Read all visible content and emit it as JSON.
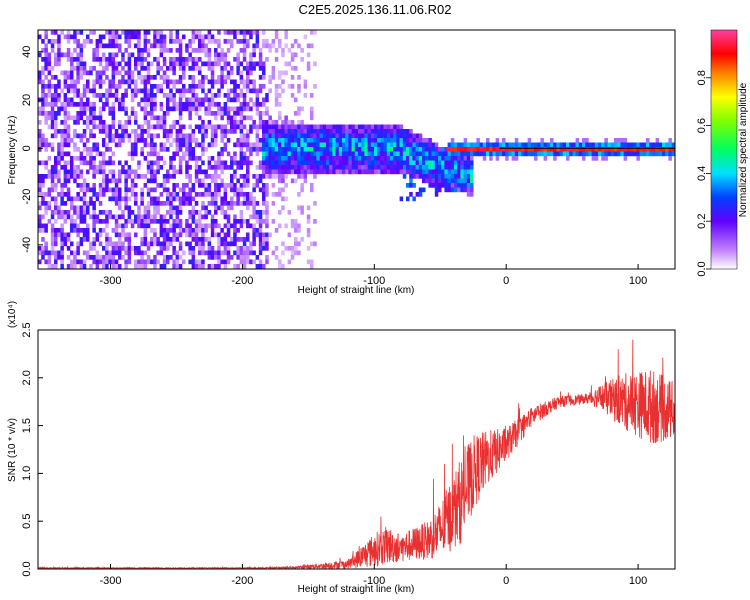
{
  "title": "C2E5.2025.136.11.06.R02",
  "chart_data": [
    {
      "type": "heatmap",
      "title": "C2E5.2025.136.11.06.R02",
      "xlabel": "Height of straight line (km)",
      "ylabel": "Frequency (Hz)",
      "xlim": [
        -355,
        128
      ],
      "ylim": [
        -50,
        49
      ],
      "x_ticks": [
        -300,
        -200,
        -100,
        0,
        100
      ],
      "y_ticks": [
        -40,
        -20,
        0,
        20,
        40
      ],
      "colorbar": {
        "label": "Normalized spectral amplitude",
        "range": [
          0.0,
          1.0
        ],
        "ticks": [
          "0.0",
          "0.2",
          "0.4",
          "0.6",
          "0.8"
        ],
        "colormap": "white-purple-blue-cyan-green-yellow-red-magenta"
      },
      "regions": [
        {
          "x": [
            -355,
            -180
          ],
          "freq": [
            -50,
            49
          ],
          "amplitude": 0.08,
          "pattern": "scattered-noise"
        },
        {
          "x": [
            -180,
            -145
          ],
          "freq": [
            -50,
            49
          ],
          "amplitude": 0.03,
          "pattern": "faint-noise"
        },
        {
          "x": [
            -180,
            -30
          ],
          "freq_center": 0,
          "freq_halfwidth": 10,
          "amplitude": 0.3,
          "pattern": "broad-band"
        },
        {
          "x": [
            -40,
            128
          ],
          "freq_center": 0,
          "freq_halfwidth": 2,
          "amplitude": 0.9,
          "pattern": "narrow-line"
        }
      ]
    },
    {
      "type": "line",
      "xlabel": "Height of straight line (km)",
      "ylabel": "SNR (10 * v/v)",
      "y_multiplier": "(x10⁴)",
      "xlim": [
        -355,
        128
      ],
      "ylim": [
        0,
        2.5
      ],
      "x_ticks": [
        -300,
        -200,
        -100,
        0,
        100
      ],
      "y_ticks": [
        "0.0",
        "0.5",
        "1.0",
        "1.5",
        "2.0",
        "2.5"
      ],
      "series_color": "#e83030",
      "envelope": [
        {
          "x": -355,
          "mean": 0.01,
          "spread": 0.005
        },
        {
          "x": -200,
          "mean": 0.01,
          "spread": 0.005
        },
        {
          "x": -160,
          "mean": 0.015,
          "spread": 0.01
        },
        {
          "x": -120,
          "mean": 0.05,
          "spread": 0.05
        },
        {
          "x": -100,
          "mean": 0.2,
          "spread": 0.18
        },
        {
          "x": -90,
          "mean": 0.25,
          "spread": 0.2
        },
        {
          "x": -80,
          "mean": 0.22,
          "spread": 0.15
        },
        {
          "x": -60,
          "mean": 0.3,
          "spread": 0.2
        },
        {
          "x": -50,
          "mean": 0.4,
          "spread": 0.3
        },
        {
          "x": -35,
          "mean": 0.7,
          "spread": 0.45
        },
        {
          "x": -25,
          "mean": 1.0,
          "spread": 0.4
        },
        {
          "x": -15,
          "mean": 1.15,
          "spread": 0.3
        },
        {
          "x": 0,
          "mean": 1.3,
          "spread": 0.18
        },
        {
          "x": 20,
          "mean": 1.6,
          "spread": 0.1
        },
        {
          "x": 40,
          "mean": 1.75,
          "spread": 0.06
        },
        {
          "x": 60,
          "mean": 1.78,
          "spread": 0.05
        },
        {
          "x": 70,
          "mean": 1.8,
          "spread": 0.12
        },
        {
          "x": 90,
          "mean": 1.75,
          "spread": 0.3
        },
        {
          "x": 110,
          "mean": 1.7,
          "spread": 0.4
        },
        {
          "x": 128,
          "mean": 1.65,
          "spread": 0.3
        }
      ]
    }
  ]
}
